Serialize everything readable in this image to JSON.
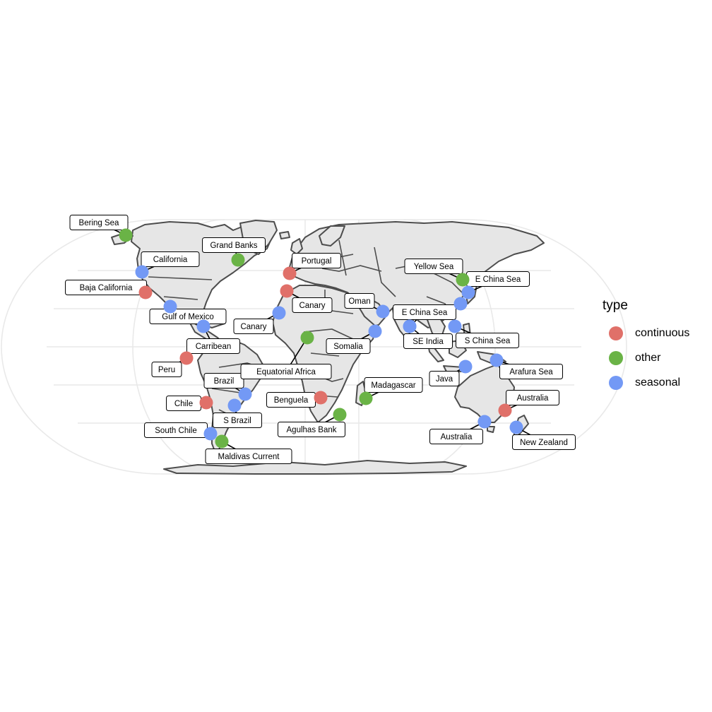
{
  "legend": {
    "title": "type",
    "items": [
      {
        "key": "continuous",
        "label": "continuous",
        "color": "#e07069"
      },
      {
        "key": "other",
        "label": "other",
        "color": "#6ab346"
      },
      {
        "key": "seasonal",
        "label": "seasonal",
        "color": "#7399f5"
      }
    ]
  },
  "sites": [
    {
      "id": "bering-sea",
      "label": "Bering Sea",
      "type": "other",
      "lon": -168,
      "lat": 60
    },
    {
      "id": "grand-banks",
      "label": "Grand Banks",
      "type": "other",
      "lon": -50,
      "lat": 46
    },
    {
      "id": "california",
      "label": "California",
      "type": "seasonal",
      "lon": -122,
      "lat": 38
    },
    {
      "id": "baja-california",
      "label": "Baja California",
      "type": "continuous",
      "lon": -113,
      "lat": 29
    },
    {
      "id": "gulf-of-mexico",
      "label": "Gulf of Mexico",
      "type": "seasonal",
      "lon": -93,
      "lat": 22
    },
    {
      "id": "carribean",
      "label": "Carribean",
      "type": "seasonal",
      "lon": -76,
      "lat": 12
    },
    {
      "id": "peru",
      "label": "Peru",
      "type": "continuous",
      "lon": -80,
      "lat": -6
    },
    {
      "id": "brazil",
      "label": "Brazil",
      "type": "seasonal",
      "lon": -37,
      "lat": -13
    },
    {
      "id": "chile",
      "label": "Chile",
      "type": "continuous",
      "lon": -72,
      "lat": -30
    },
    {
      "id": "s-brazil",
      "label": "S Brazil",
      "type": "seasonal",
      "lon": -46,
      "lat": -30
    },
    {
      "id": "south-chile",
      "label": "South Chile",
      "type": "seasonal",
      "lon": -74,
      "lat": -45
    },
    {
      "id": "maldivas-current",
      "label": "Maldivas Current",
      "type": "other",
      "lon": -57,
      "lat": -50
    },
    {
      "id": "portugal",
      "label": "Portugal",
      "type": "continuous",
      "lon": -9,
      "lat": 39
    },
    {
      "id": "canary-north",
      "label": "Canary",
      "type": "continuous",
      "lon": -13,
      "lat": 30
    },
    {
      "id": "canary-south",
      "label": "Canary",
      "type": "seasonal",
      "lon": -17,
      "lat": 18
    },
    {
      "id": "equatorial-africa",
      "label": "Equatorial Africa",
      "type": "other",
      "lon": 4,
      "lat": 1
    },
    {
      "id": "benguela",
      "label": "Benguela",
      "type": "continuous",
      "lon": 13,
      "lat": -28
    },
    {
      "id": "agulhas-bank",
      "label": "Agulhas Bank",
      "type": "other",
      "lon": 22,
      "lat": -37
    },
    {
      "id": "oman",
      "label": "Oman",
      "type": "seasonal",
      "lon": 58,
      "lat": 20
    },
    {
      "id": "somalia",
      "label": "Somalia",
      "type": "seasonal",
      "lon": 52,
      "lat": 9
    },
    {
      "id": "madagascar",
      "label": "Madagascar",
      "type": "other",
      "lon": 47,
      "lat": -27
    },
    {
      "id": "e-china-sea-west",
      "label": "E China Sea",
      "type": "seasonal",
      "lon": 80,
      "lat": 12
    },
    {
      "id": "se-india",
      "label": "SE India",
      "type": "seasonal",
      "lon": 80,
      "lat": 12
    },
    {
      "id": "yellow-sea",
      "label": "Yellow Sea",
      "type": "other",
      "lon": 124,
      "lat": 36
    },
    {
      "id": "e-china-sea-north",
      "label": "E China Sea",
      "type": "seasonal",
      "lon": 127,
      "lat": 29
    },
    {
      "id": "e-china-sea-south",
      "label": "E China Sea",
      "type": "seasonal",
      "lon": 121,
      "lat": 23
    },
    {
      "id": "s-china-sea",
      "label": "S China Sea",
      "type": "seasonal",
      "lon": 110,
      "lat": 13
    },
    {
      "id": "arafura-sea",
      "label": "Arafura Sea",
      "type": "seasonal",
      "lon": 138,
      "lat": -8
    },
    {
      "id": "java",
      "label": "Java",
      "type": "seasonal",
      "lon": 113,
      "lat": -13
    },
    {
      "id": "australia-east",
      "label": "Australia",
      "type": "continuous",
      "lon": 152,
      "lat": -33
    },
    {
      "id": "australia-south",
      "label": "Australia",
      "type": "seasonal",
      "lon": 138,
      "lat": -40
    },
    {
      "id": "new-zealand",
      "label": "New Zealand",
      "type": "seasonal",
      "lon": 170,
      "lat": -42
    }
  ]
}
